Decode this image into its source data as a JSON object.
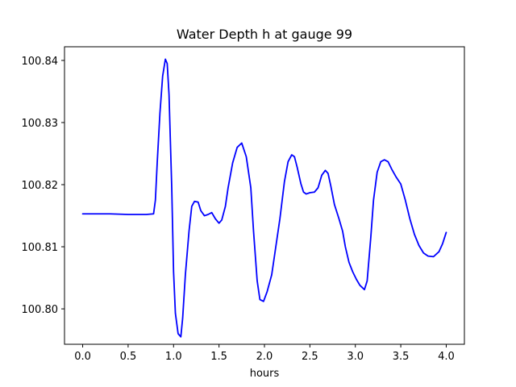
{
  "chart_data": {
    "type": "line",
    "title": "Water Depth h at gauge 99",
    "xlabel": "hours",
    "ylabel": "",
    "xlim": [
      -0.2,
      4.2
    ],
    "ylim": [
      100.7943,
      100.8422
    ],
    "grid": false,
    "line_color": "#0000ff",
    "x_ticks": [
      0.0,
      0.5,
      1.0,
      1.5,
      2.0,
      2.5,
      3.0,
      3.5,
      4.0
    ],
    "x_tick_labels": [
      "0.0",
      "0.5",
      "1.0",
      "1.5",
      "2.0",
      "2.5",
      "3.0",
      "3.5",
      "4.0"
    ],
    "y_ticks": [
      100.8,
      100.81,
      100.82,
      100.83,
      100.84
    ],
    "y_tick_labels": [
      "100.80",
      "100.81",
      "100.82",
      "100.83",
      "100.84"
    ],
    "series": [
      {
        "x": [
          0.0,
          0.3,
          0.5,
          0.7,
          0.78,
          0.8,
          0.82,
          0.85,
          0.88,
          0.91,
          0.93,
          0.95,
          0.98,
          1.0,
          1.02,
          1.05,
          1.08,
          1.1,
          1.13,
          1.17,
          1.2,
          1.23,
          1.27,
          1.3,
          1.34,
          1.38,
          1.42,
          1.46,
          1.5,
          1.53,
          1.57,
          1.6,
          1.65,
          1.7,
          1.75,
          1.8,
          1.85,
          1.88,
          1.92,
          1.95,
          1.99,
          2.03,
          2.08,
          2.12,
          2.17,
          2.22,
          2.26,
          2.3,
          2.33,
          2.36,
          2.4,
          2.43,
          2.46,
          2.5,
          2.55,
          2.59,
          2.63,
          2.67,
          2.7,
          2.73,
          2.77,
          2.82,
          2.86,
          2.89,
          2.93,
          2.97,
          3.01,
          3.05,
          3.1,
          3.13,
          3.17,
          3.2,
          3.24,
          3.28,
          3.32,
          3.36,
          3.4,
          3.45,
          3.5,
          3.55,
          3.6,
          3.65,
          3.7,
          3.75,
          3.8,
          3.86,
          3.92,
          3.96,
          4.0
        ],
        "y": [
          100.8153,
          100.8153,
          100.8152,
          100.8152,
          100.8153,
          100.8175,
          100.8235,
          100.8315,
          100.8375,
          100.8402,
          100.8395,
          100.8345,
          100.8195,
          100.806,
          100.7993,
          100.796,
          100.7955,
          100.7985,
          100.8055,
          100.8125,
          100.8165,
          100.8173,
          100.8172,
          100.8158,
          100.815,
          100.8152,
          100.8155,
          100.8145,
          100.8138,
          100.8143,
          100.8165,
          100.8195,
          100.8235,
          100.826,
          100.8267,
          100.8245,
          100.8195,
          100.8125,
          100.8045,
          100.8015,
          100.8012,
          100.8028,
          100.8055,
          100.8095,
          100.8145,
          100.8205,
          100.8237,
          100.8248,
          100.8245,
          100.8228,
          100.8202,
          100.8188,
          100.8185,
          100.8187,
          100.8188,
          100.8195,
          100.8215,
          100.8223,
          100.8218,
          100.8198,
          100.8168,
          100.8145,
          100.8125,
          100.81,
          100.8075,
          100.806,
          100.8048,
          100.8038,
          100.8031,
          100.8045,
          100.8115,
          100.8175,
          100.822,
          100.8237,
          100.824,
          100.8237,
          100.8225,
          100.8212,
          100.8201,
          100.8175,
          100.8145,
          100.812,
          100.8102,
          100.809,
          100.8085,
          100.8084,
          100.8092,
          100.8105,
          100.8123
        ]
      }
    ]
  }
}
